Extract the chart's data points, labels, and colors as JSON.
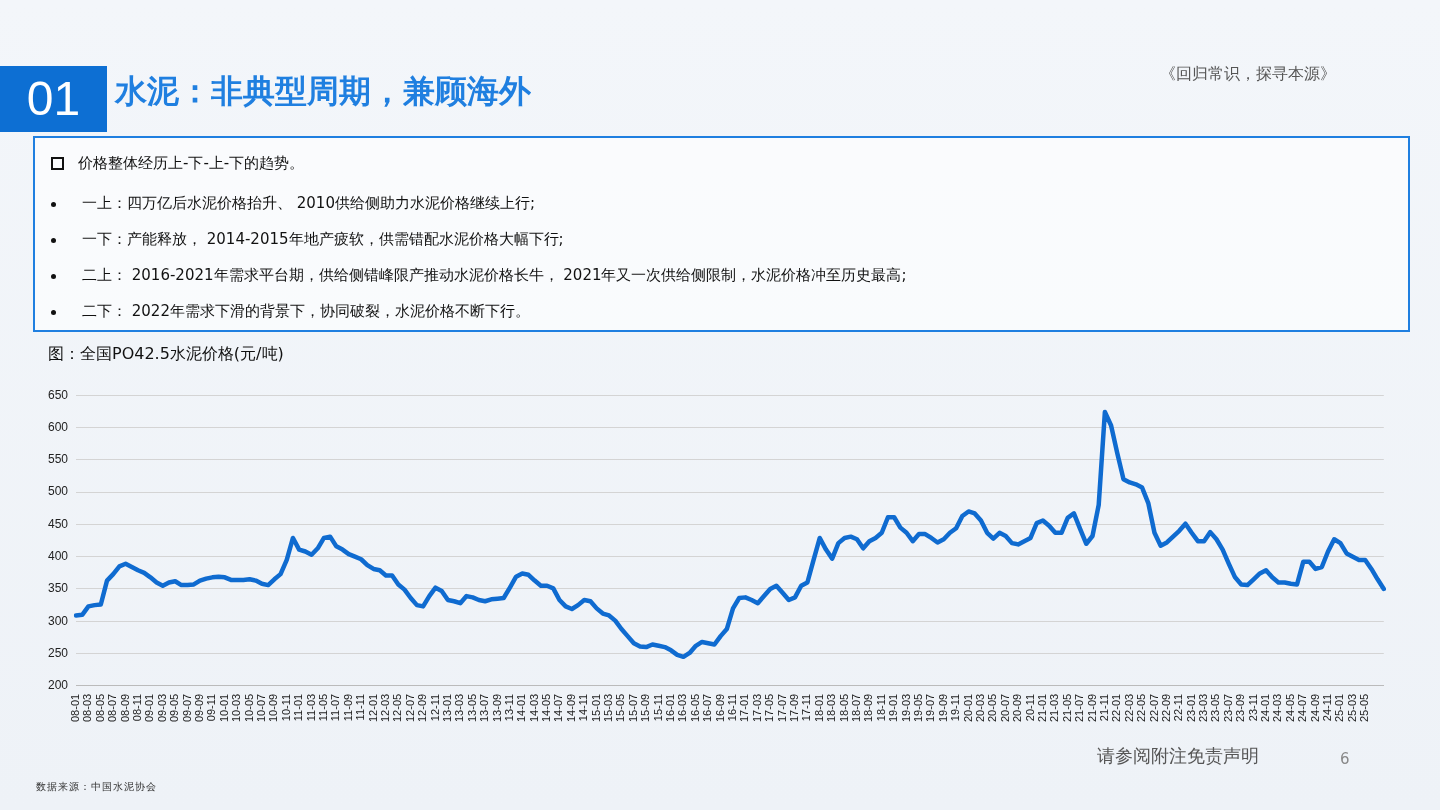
{
  "chart_data": {
    "type": "line",
    "title": "图：全国PO42.5水泥价格(元/吨)",
    "annotations": [
      "01",
      "水泥：非典型周期，兼顾海外",
      "《回归常识，探寻本源》",
      "价格整体经历上-下-上-下的趋势。",
      "一上：四万亿后水泥价格抬升、 2010供给侧助力水泥价格继续上行;",
      "一下：产能释放， 2014-2015年地产疲软，供需错配水泥价格大幅下行;",
      "二上： 2016-2021年需求平台期，供给侧错峰限产推动水泥价格长牛， 2021年又一次供给侧限制，水泥价格冲至历史最高;",
      "二下： 2022年需求下滑的背景下，协同破裂，水泥价格不断下行。",
      "数据来源：中国水泥协会",
      "请参阅附注免责声明",
      "6"
    ],
    "categories": [
      "08-01",
      null,
      "08-03",
      null,
      "08-05",
      null,
      "08-07",
      null,
      "08-09",
      null,
      "08-11",
      null,
      "09-01",
      null,
      "09-03",
      null,
      "09-05",
      null,
      "09-07",
      null,
      "09-09",
      null,
      "09-11",
      null,
      "10-01",
      null,
      "10-03",
      null,
      "10-05",
      null,
      "10-07",
      null,
      "10-09",
      null,
      "10-11",
      null,
      "11-01",
      null,
      "11-03",
      null,
      "11-05",
      null,
      "11-07",
      null,
      "11-09",
      null,
      "11-11",
      null,
      "12-01",
      null,
      "12-03",
      null,
      "12-05",
      null,
      "12-07",
      null,
      "12-09",
      null,
      "12-11",
      null,
      "13-01",
      null,
      "13-03",
      null,
      "13-05",
      null,
      "13-07",
      null,
      "13-09",
      null,
      "13-11",
      null,
      "14-01",
      null,
      "14-03",
      null,
      "14-05",
      null,
      "14-07",
      null,
      "14-09",
      null,
      "14-11",
      null,
      "15-01",
      null,
      "15-03",
      null,
      "15-05",
      null,
      "15-07",
      null,
      "15-09",
      null,
      "15-11",
      null,
      "16-01",
      null,
      "16-03",
      null,
      "16-05",
      null,
      "16-07",
      null,
      "16-09",
      null,
      "16-11",
      null,
      "17-01",
      null,
      "17-03",
      null,
      "17-05",
      null,
      "17-07",
      null,
      "17-09",
      null,
      "17-11",
      null,
      "18-01",
      null,
      "18-03",
      null,
      "18-05",
      null,
      "18-07",
      null,
      "18-09",
      null,
      "18-11",
      null,
      "19-01",
      null,
      "19-03",
      null,
      "19-05",
      null,
      "19-07",
      null,
      "19-09",
      null,
      "19-11",
      null,
      "20-01",
      null,
      "20-03",
      null,
      "20-05",
      null,
      "20-07",
      null,
      "20-09",
      null,
      "20-11",
      null,
      "21-01",
      null,
      "21-03",
      null,
      "21-05",
      null,
      "21-07",
      null,
      "21-09",
      null,
      "21-11",
      null,
      "22-01",
      null,
      "22-03",
      null,
      "22-05",
      null,
      "22-07",
      null,
      "22-09",
      null,
      "22-11",
      null,
      "23-01",
      null,
      "23-03",
      null,
      "23-05",
      null,
      "23-07",
      null,
      "23-09",
      null,
      "23-11",
      null,
      "24-01",
      null,
      "24-03",
      null,
      "24-05",
      null,
      "24-07",
      null,
      "24-09",
      null,
      "24-11",
      null,
      "25-01",
      null,
      "25-03",
      null,
      "25-05",
      null,
      null,
      null
    ],
    "series": [
      {
        "color": "#0f6bd0",
        "values": [
          309,
          310,
          323,
          325,
          326,
          363,
          373,
          385,
          389,
          384,
          379,
          375,
          368,
          360,
          355,
          360,
          362,
          356,
          356,
          357,
          363,
          366,
          368,
          369,
          368,
          364,
          364,
          364,
          365,
          363,
          358,
          356,
          365,
          373,
          395,
          429,
          411,
          408,
          403,
          413,
          429,
          431,
          416,
          411,
          404,
          400,
          396,
          387,
          381,
          379,
          371,
          371,
          357,
          349,
          336,
          325,
          323,
          339,
          352,
          347,
          333,
          331,
          328,
          339,
          337,
          333,
          331,
          334,
          335,
          336,
          352,
          369,
          374,
          372,
          363,
          355,
          355,
          351,
          333,
          323,
          319,
          325,
          333,
          331,
          320,
          312,
          309,
          301,
          288,
          277,
          266,
          261,
          260,
          264,
          262,
          260,
          255,
          248,
          245,
          251,
          262,
          268,
          266,
          264,
          277,
          288,
          320,
          336,
          337,
          333,
          328,
          339,
          350,
          355,
          344,
          333,
          337,
          355,
          360,
          395,
          429,
          411,
          397,
          421,
          429,
          431,
          427,
          413,
          424,
          429,
          437,
          461,
          461,
          445,
          437,
          424,
          435,
          435,
          429,
          422,
          427,
          437,
          444,
          463,
          470,
          467,
          456,
          437,
          428,
          437,
          432,
          421,
          419,
          424,
          429,
          452,
          456,
          448,
          437,
          437,
          460,
          467,
          443,
          420,
          432,
          480,
          624,
          603,
          560,
          520,
          515,
          512,
          507,
          483,
          437,
          417,
          422,
          431,
          440,
          451,
          437,
          424,
          424,
          438,
          427,
          411,
          389,
          368,
          357,
          356,
          365,
          374,
          379,
          368,
          360,
          360,
          358,
          357,
          392,
          392,
          381,
          384,
          408,
          427,
          421,
          405,
          400,
          395,
          395,
          381,
          365,
          350
        ]
      }
    ],
    "ylim": [
      200,
      650
    ],
    "yticks": [
      200,
      250,
      300,
      350,
      400,
      450,
      500,
      550,
      600,
      650
    ],
    "grid": "y",
    "legend": false,
    "marker": "none",
    "line_style": "solid"
  }
}
